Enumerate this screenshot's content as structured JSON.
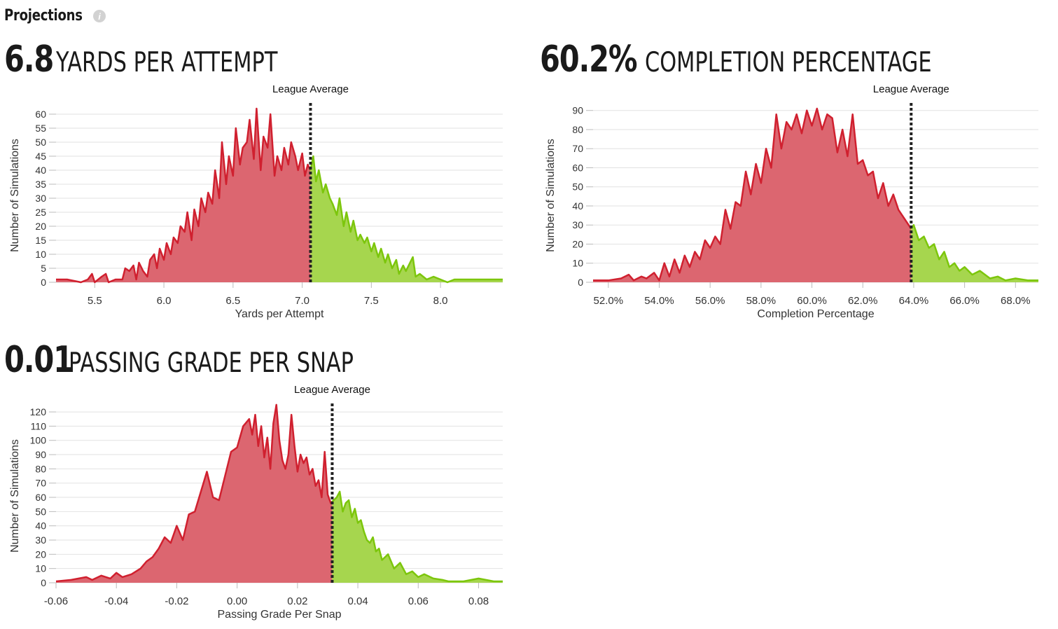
{
  "header": {
    "title": "Projections",
    "info_icon": "info-icon"
  },
  "colors": {
    "below": "#d0202f",
    "below_fill": "#dc6670",
    "above": "#7cc60c",
    "above_fill": "#a6d64e",
    "grid": "#e2e2e2",
    "avg_line": "#222222"
  },
  "charts": [
    {
      "value": "6.8",
      "label": "YARDS PER ATTEMPT",
      "avg_label": "League Average",
      "xlabel": "Yards per Attempt",
      "ylabel": "Number of Simulations",
      "xlim": [
        5.22,
        8.45
      ],
      "xticks": [
        5.5,
        6.0,
        6.5,
        7.0,
        7.5,
        8.0
      ],
      "xtick_labels": [
        "5.5",
        "6.0",
        "6.5",
        "7.0",
        "7.5",
        "8.0"
      ],
      "yticks": [
        0,
        5,
        10,
        15,
        20,
        25,
        30,
        35,
        40,
        45,
        50,
        55,
        60
      ],
      "ylim": [
        0,
        62
      ]
    },
    {
      "value": "60.2%",
      "label": "COMPLETION PERCENTAGE",
      "avg_label": "League Average",
      "xlabel": "Completion Percentage",
      "ylabel": "Number of Simulations",
      "xlim": [
        51.4,
        68.9
      ],
      "xticks": [
        52,
        54,
        56,
        58,
        60,
        62,
        64,
        66,
        68
      ],
      "xtick_labels": [
        "52.0%",
        "54.0%",
        "56.0%",
        "58.0%",
        "60.0%",
        "62.0%",
        "64.0%",
        "66.0%",
        "68.0%"
      ],
      "yticks": [
        0,
        10,
        20,
        30,
        40,
        50,
        60,
        70,
        80,
        90
      ],
      "ylim": [
        0,
        91
      ]
    },
    {
      "value": "0.01",
      "label": "PASSING GRADE PER SNAP",
      "avg_label": "League Average",
      "xlabel": "Passing Grade Per Snap",
      "ylabel": "Number of Simulations",
      "xlim": [
        -0.06,
        0.088
      ],
      "xticks": [
        -0.06,
        -0.04,
        -0.02,
        0.0,
        0.02,
        0.04,
        0.06,
        0.08
      ],
      "xtick_labels": [
        "-0.06",
        "-0.04",
        "-0.02",
        "0.00",
        "0.02",
        "0.04",
        "0.06",
        "0.08"
      ],
      "yticks": [
        0,
        10,
        20,
        30,
        40,
        50,
        60,
        70,
        80,
        90,
        100,
        110,
        120
      ],
      "ylim": [
        0,
        122
      ]
    }
  ],
  "chart_data": [
    {
      "type": "area",
      "title": "YARDS PER ATTEMPT",
      "xlabel": "Yards per Attempt",
      "ylabel": "Number of Simulations",
      "xlim": [
        5.22,
        8.45
      ],
      "ylim": [
        0,
        62
      ],
      "league_average": 7.06,
      "grid": true,
      "x": [
        5.22,
        5.3,
        5.4,
        5.45,
        5.48,
        5.5,
        5.55,
        5.58,
        5.6,
        5.65,
        5.7,
        5.72,
        5.75,
        5.78,
        5.8,
        5.82,
        5.85,
        5.88,
        5.9,
        5.93,
        5.95,
        5.97,
        6.0,
        6.02,
        6.05,
        6.07,
        6.1,
        6.12,
        6.15,
        6.17,
        6.2,
        6.22,
        6.25,
        6.27,
        6.3,
        6.32,
        6.35,
        6.37,
        6.4,
        6.42,
        6.45,
        6.47,
        6.5,
        6.52,
        6.55,
        6.57,
        6.6,
        6.62,
        6.65,
        6.67,
        6.7,
        6.72,
        6.75,
        6.77,
        6.8,
        6.82,
        6.85,
        6.87,
        6.9,
        6.92,
        6.95,
        6.97,
        7.0,
        7.02,
        7.04,
        7.06,
        7.08,
        7.1,
        7.12,
        7.15,
        7.17,
        7.2,
        7.22,
        7.25,
        7.27,
        7.3,
        7.32,
        7.35,
        7.37,
        7.4,
        7.42,
        7.45,
        7.47,
        7.5,
        7.52,
        7.55,
        7.57,
        7.6,
        7.62,
        7.65,
        7.68,
        7.7,
        7.73,
        7.75,
        7.8,
        7.82,
        7.85,
        7.9,
        7.95,
        8.0,
        8.05,
        8.1,
        8.2,
        8.3,
        8.45
      ],
      "y": [
        1,
        1,
        0,
        1,
        3,
        0,
        2,
        3,
        0,
        1,
        1,
        5,
        4,
        6,
        1,
        7,
        4,
        2,
        8,
        10,
        5,
        12,
        8,
        14,
        10,
        16,
        14,
        20,
        18,
        25,
        15,
        26,
        20,
        30,
        25,
        32,
        28,
        40,
        30,
        50,
        35,
        45,
        38,
        55,
        42,
        48,
        50,
        58,
        44,
        62,
        40,
        52,
        48,
        60,
        38,
        45,
        40,
        48,
        42,
        50,
        45,
        40,
        46,
        38,
        42,
        40,
        45,
        36,
        40,
        32,
        35,
        30,
        28,
        24,
        30,
        20,
        25,
        18,
        22,
        15,
        17,
        14,
        16,
        11,
        14,
        9,
        12,
        7,
        10,
        5,
        8,
        3,
        6,
        4,
        9,
        2,
        3,
        1,
        2,
        1,
        0,
        1,
        1,
        1,
        1
      ]
    },
    {
      "type": "area",
      "title": "COMPLETION PERCENTAGE",
      "xlabel": "Completion Percentage",
      "ylabel": "Number of Simulations",
      "xlim": [
        51.4,
        68.9
      ],
      "ylim": [
        0,
        91
      ],
      "league_average": 63.9,
      "grid": true,
      "x": [
        51.4,
        52.0,
        52.5,
        52.8,
        53.0,
        53.3,
        53.5,
        53.8,
        54.0,
        54.2,
        54.4,
        54.6,
        54.8,
        55.0,
        55.2,
        55.4,
        55.6,
        55.8,
        56.0,
        56.2,
        56.4,
        56.6,
        56.8,
        57.0,
        57.2,
        57.4,
        57.6,
        57.8,
        58.0,
        58.2,
        58.4,
        58.6,
        58.8,
        59.0,
        59.2,
        59.4,
        59.6,
        59.8,
        60.0,
        60.2,
        60.4,
        60.6,
        60.8,
        61.0,
        61.2,
        61.4,
        61.6,
        61.8,
        62.0,
        62.2,
        62.4,
        62.6,
        62.8,
        63.0,
        63.2,
        63.4,
        63.6,
        63.8,
        63.9,
        64.0,
        64.2,
        64.4,
        64.6,
        64.8,
        65.0,
        65.2,
        65.4,
        65.6,
        65.8,
        66.0,
        66.3,
        66.6,
        67.0,
        67.3,
        67.6,
        68.0,
        68.5,
        68.9
      ],
      "y": [
        1,
        1,
        2,
        4,
        1,
        3,
        2,
        5,
        1,
        10,
        3,
        12,
        5,
        14,
        8,
        16,
        12,
        22,
        18,
        24,
        20,
        38,
        28,
        42,
        40,
        58,
        46,
        62,
        52,
        70,
        60,
        88,
        70,
        84,
        80,
        88,
        78,
        90,
        82,
        91,
        80,
        88,
        86,
        68,
        80,
        66,
        88,
        62,
        64,
        56,
        58,
        44,
        52,
        40,
        46,
        38,
        34,
        30,
        28,
        30,
        22,
        24,
        18,
        20,
        12,
        16,
        8,
        10,
        6,
        8,
        4,
        6,
        2,
        3,
        1,
        2,
        1,
        1
      ]
    },
    {
      "type": "area",
      "title": "PASSING GRADE PER SNAP",
      "xlabel": "Passing Grade Per Snap",
      "ylabel": "Number of Simulations",
      "xlim": [
        -0.06,
        0.088
      ],
      "ylim": [
        0,
        122
      ],
      "league_average": 0.0315,
      "grid": true,
      "x": [
        -0.06,
        -0.055,
        -0.05,
        -0.048,
        -0.045,
        -0.042,
        -0.04,
        -0.038,
        -0.035,
        -0.032,
        -0.03,
        -0.028,
        -0.026,
        -0.024,
        -0.022,
        -0.02,
        -0.018,
        -0.016,
        -0.014,
        -0.012,
        -0.01,
        -0.008,
        -0.006,
        -0.004,
        -0.002,
        0.0,
        0.002,
        0.004,
        0.005,
        0.006,
        0.007,
        0.008,
        0.009,
        0.01,
        0.011,
        0.012,
        0.013,
        0.014,
        0.015,
        0.016,
        0.017,
        0.018,
        0.019,
        0.02,
        0.021,
        0.022,
        0.023,
        0.024,
        0.025,
        0.026,
        0.027,
        0.028,
        0.029,
        0.03,
        0.031,
        0.032,
        0.033,
        0.034,
        0.035,
        0.036,
        0.037,
        0.038,
        0.039,
        0.04,
        0.041,
        0.042,
        0.043,
        0.044,
        0.045,
        0.046,
        0.047,
        0.048,
        0.05,
        0.052,
        0.054,
        0.056,
        0.058,
        0.06,
        0.062,
        0.065,
        0.068,
        0.07,
        0.075,
        0.08,
        0.085,
        0.088
      ],
      "y": [
        1,
        2,
        4,
        2,
        5,
        3,
        7,
        4,
        6,
        10,
        15,
        18,
        24,
        32,
        28,
        40,
        30,
        48,
        50,
        64,
        78,
        60,
        58,
        75,
        92,
        95,
        110,
        115,
        104,
        118,
        96,
        110,
        88,
        102,
        80,
        112,
        125,
        100,
        86,
        80,
        90,
        118,
        96,
        78,
        90,
        84,
        88,
        76,
        80,
        68,
        72,
        60,
        92,
        62,
        56,
        58,
        60,
        64,
        50,
        56,
        58,
        46,
        52,
        42,
        44,
        36,
        30,
        28,
        32,
        22,
        24,
        16,
        20,
        10,
        14,
        6,
        8,
        4,
        6,
        3,
        2,
        1,
        1,
        3,
        1,
        1
      ]
    }
  ]
}
